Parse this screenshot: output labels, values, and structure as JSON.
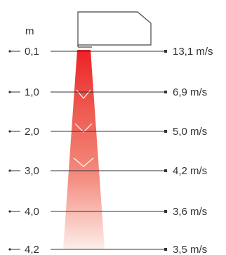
{
  "diagram": {
    "distance_unit": "m",
    "rows": [
      {
        "distance": "0,1",
        "velocity": "13,1 m/s"
      },
      {
        "distance": "1,0",
        "velocity": "6,9 m/s"
      },
      {
        "distance": "2,0",
        "velocity": "5,0 m/s"
      },
      {
        "distance": "3,0",
        "velocity": "4,2 m/s"
      },
      {
        "distance": "4,0",
        "velocity": "3,6 m/s"
      },
      {
        "distance": "4,2",
        "velocity": "3,5 m/s"
      }
    ],
    "colors": {
      "jet_top": "#ec2226",
      "jet_bottom": "#fdeeea",
      "lines": "#333333",
      "unit_outline": "#444444"
    },
    "icons": {
      "air_outlet_unit": "air-outlet-unit-icon"
    }
  }
}
